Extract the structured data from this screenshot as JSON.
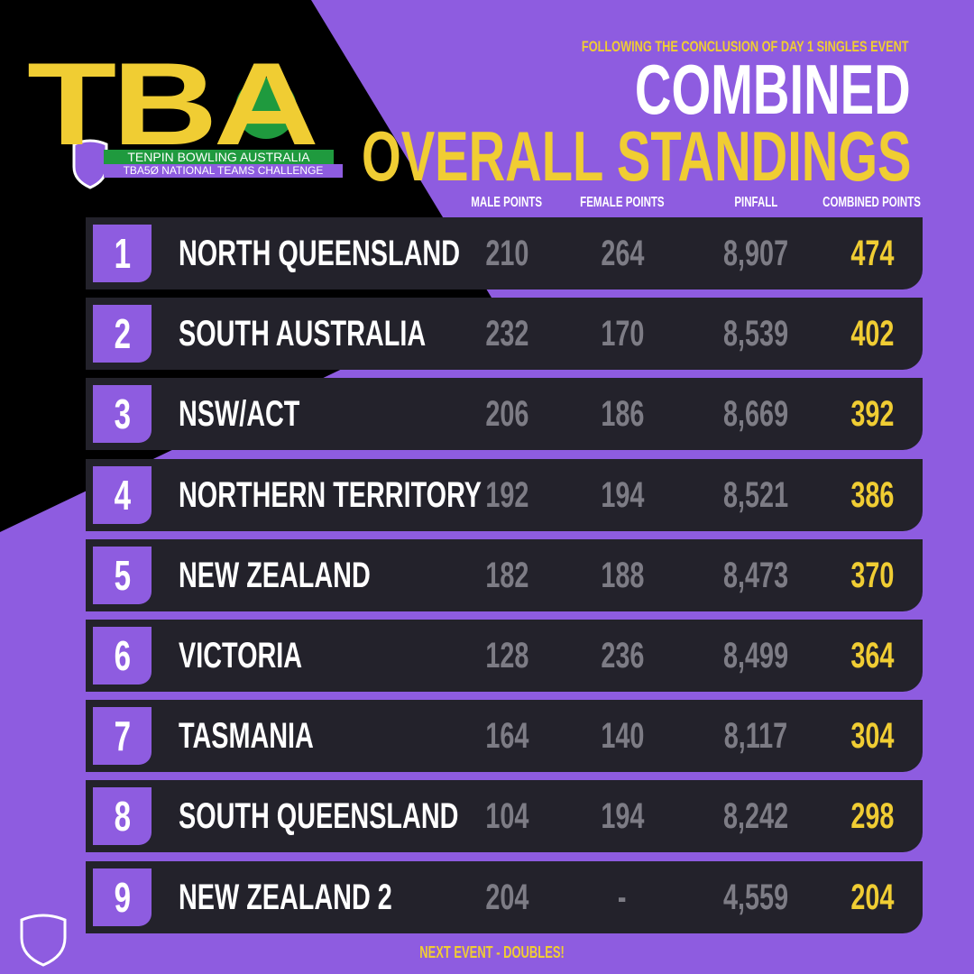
{
  "logo": {
    "mark": "TBA",
    "name": "TENPIN BOWLING AUSTRALIA",
    "event": "TBA5Ø NATIONAL TEAMS CHALLENGE"
  },
  "header": {
    "subtitle": "FOLLOWING THE CONCLUSION OF DAY 1 SINGLES EVENT",
    "title_line1": "COMBINED",
    "title_line2": "OVERALL STANDINGS"
  },
  "table": {
    "columns": [
      "MALE POINTS",
      "FEMALE POINTS",
      "PINFALL",
      "COMBINED POINTS"
    ],
    "rows": [
      [
        "1",
        "NORTH QUEENSLAND",
        "210",
        "264",
        "8,907",
        "474"
      ],
      [
        "2",
        "SOUTH AUSTRALIA",
        "232",
        "170",
        "8,539",
        "402"
      ],
      [
        "3",
        "NSW/ACT",
        "206",
        "186",
        "8,669",
        "392"
      ],
      [
        "4",
        "NORTHERN TERRITORY",
        "192",
        "194",
        "8,521",
        "386"
      ],
      [
        "5",
        "NEW ZEALAND",
        "182",
        "188",
        "8,473",
        "370"
      ],
      [
        "6",
        "VICTORIA",
        "128",
        "236",
        "8,499",
        "364"
      ],
      [
        "7",
        "TASMANIA",
        "164",
        "140",
        "8,117",
        "304"
      ],
      [
        "8",
        "SOUTH QUEENSLAND",
        "104",
        "194",
        "8,242",
        "298"
      ],
      [
        "9",
        "NEW ZEALAND 2",
        "204",
        "-",
        "4,559",
        "204"
      ]
    ]
  },
  "footer": "NEXT EVENT - DOUBLES!"
}
